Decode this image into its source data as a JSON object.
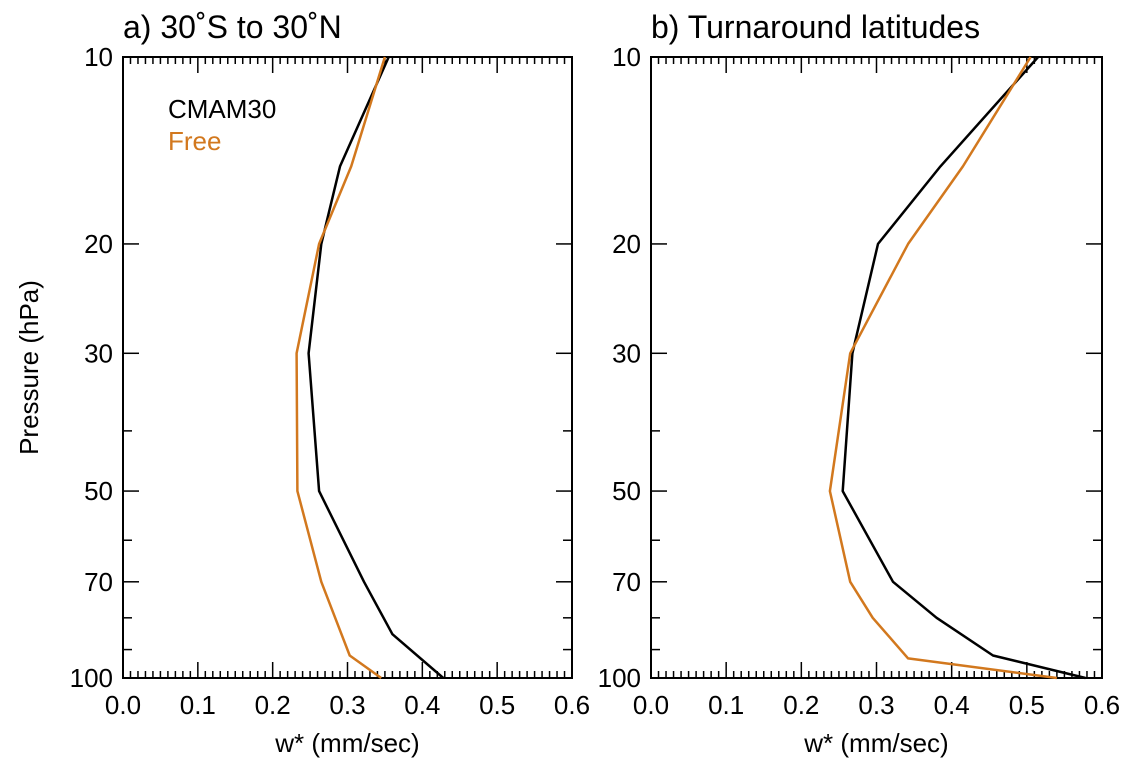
{
  "chart_data": [
    {
      "type": "line",
      "title": "a) 30˚S to 30˚N",
      "xlabel": "w* (mm/sec)",
      "ylabel": "Pressure (hPa)",
      "xlim": [
        0.0,
        0.6
      ],
      "ylim": [
        100,
        10
      ],
      "y_scale": "log",
      "x_ticks": [
        "0.0",
        "0.1",
        "0.2",
        "0.3",
        "0.4",
        "0.5",
        "0.6"
      ],
      "y_ticks": [
        "10",
        "20",
        "30",
        "50",
        "70",
        "100"
      ],
      "grid": false,
      "legend": {
        "placement": "top-left",
        "entries": [
          "CMAM30",
          "Free"
        ]
      },
      "series": [
        {
          "name": "CMAM30",
          "color": "#000000",
          "points": [
            [
              0.355,
              10
            ],
            [
              0.29,
              15
            ],
            [
              0.265,
              20
            ],
            [
              0.248,
              30
            ],
            [
              0.262,
              50
            ],
            [
              0.322,
              70
            ],
            [
              0.36,
              85
            ],
            [
              0.428,
              100
            ]
          ]
        },
        {
          "name": "Free",
          "color": "#d2781e",
          "points": [
            [
              0.35,
              10
            ],
            [
              0.305,
              15
            ],
            [
              0.262,
              20
            ],
            [
              0.232,
              30
            ],
            [
              0.233,
              50
            ],
            [
              0.265,
              70
            ],
            [
              0.303,
              92
            ],
            [
              0.345,
              100
            ]
          ]
        }
      ]
    },
    {
      "type": "line",
      "title": "b) Turnaround latitudes",
      "xlabel": "w* (mm/sec)",
      "ylabel": "",
      "xlim": [
        0.0,
        0.6
      ],
      "ylim": [
        100,
        10
      ],
      "y_scale": "log",
      "x_ticks": [
        "0.0",
        "0.1",
        "0.2",
        "0.3",
        "0.4",
        "0.5",
        "0.6"
      ],
      "y_ticks": [
        "10",
        "20",
        "30",
        "50",
        "70",
        "100"
      ],
      "grid": false,
      "series": [
        {
          "name": "CMAM30",
          "color": "#000000",
          "points": [
            [
              0.515,
              10
            ],
            [
              0.385,
              15
            ],
            [
              0.302,
              20
            ],
            [
              0.268,
              30
            ],
            [
              0.255,
              50
            ],
            [
              0.322,
              70
            ],
            [
              0.38,
              80
            ],
            [
              0.455,
              92
            ],
            [
              0.578,
              100
            ]
          ]
        },
        {
          "name": "Free",
          "color": "#d2781e",
          "points": [
            [
              0.505,
              10
            ],
            [
              0.415,
              15
            ],
            [
              0.342,
              20
            ],
            [
              0.265,
              30
            ],
            [
              0.238,
              50
            ],
            [
              0.265,
              70
            ],
            [
              0.295,
              80
            ],
            [
              0.342,
              93
            ],
            [
              0.54,
              100
            ]
          ]
        }
      ]
    }
  ]
}
